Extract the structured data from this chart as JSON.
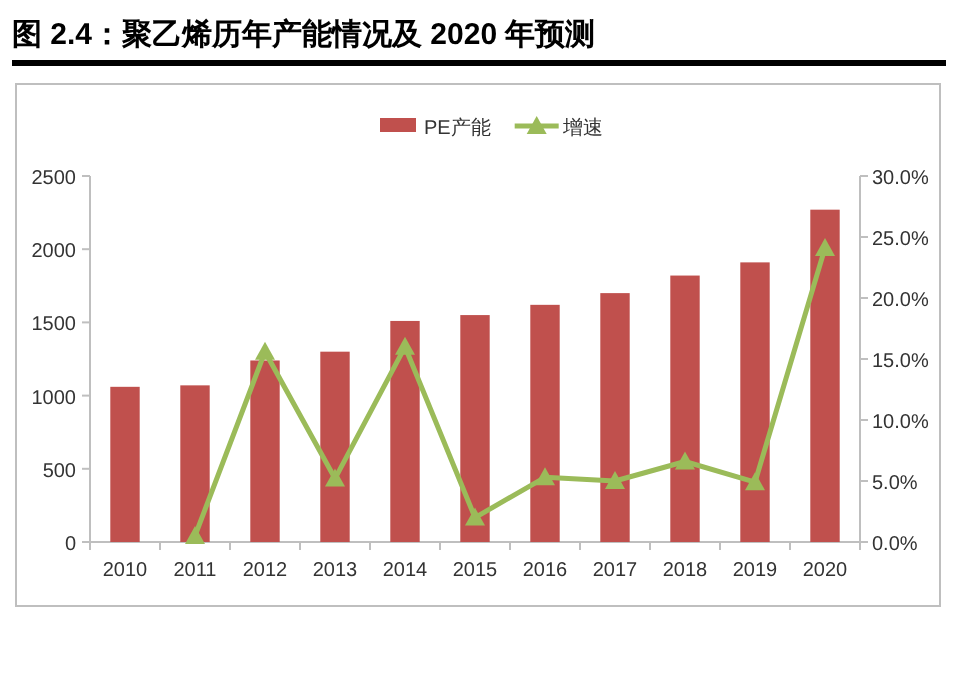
{
  "chart_data": {
    "type": "bar",
    "title": "图 2.4：聚乙烯历年产能情况及 2020 年预测",
    "categories": [
      "2010",
      "2011",
      "2012",
      "2013",
      "2014",
      "2015",
      "2016",
      "2017",
      "2018",
      "2019",
      "2020"
    ],
    "series": [
      {
        "name": "PE产能",
        "color": "#c0504d",
        "values": [
          1060,
          1070,
          1240,
          1300,
          1510,
          1550,
          1620,
          1700,
          1820,
          1910,
          2270
        ]
      },
      {
        "name": "增速",
        "type": "line",
        "axis": "y2",
        "color": "#9bbb59",
        "marker": "triangle",
        "values": [
          null,
          0.5,
          15.6,
          5.2,
          16.0,
          2.0,
          5.3,
          5.0,
          6.6,
          4.9,
          24.1
        ]
      }
    ],
    "ylim": [
      0,
      2500
    ],
    "yticks": [
      0,
      500,
      1000,
      1500,
      2000,
      2500
    ],
    "y2lim": [
      0,
      30
    ],
    "y2ticks": [
      {
        "value": 0,
        "label": "0.0%"
      },
      {
        "value": 5,
        "label": "5.0%"
      },
      {
        "value": 10,
        "label": "10.0%"
      },
      {
        "value": 15,
        "label": "15.0%"
      },
      {
        "value": 20,
        "label": "20.0%"
      },
      {
        "value": 25,
        "label": "25.0%"
      },
      {
        "value": 30,
        "label": "30.0%"
      }
    ],
    "legend": "top",
    "grid": false
  }
}
